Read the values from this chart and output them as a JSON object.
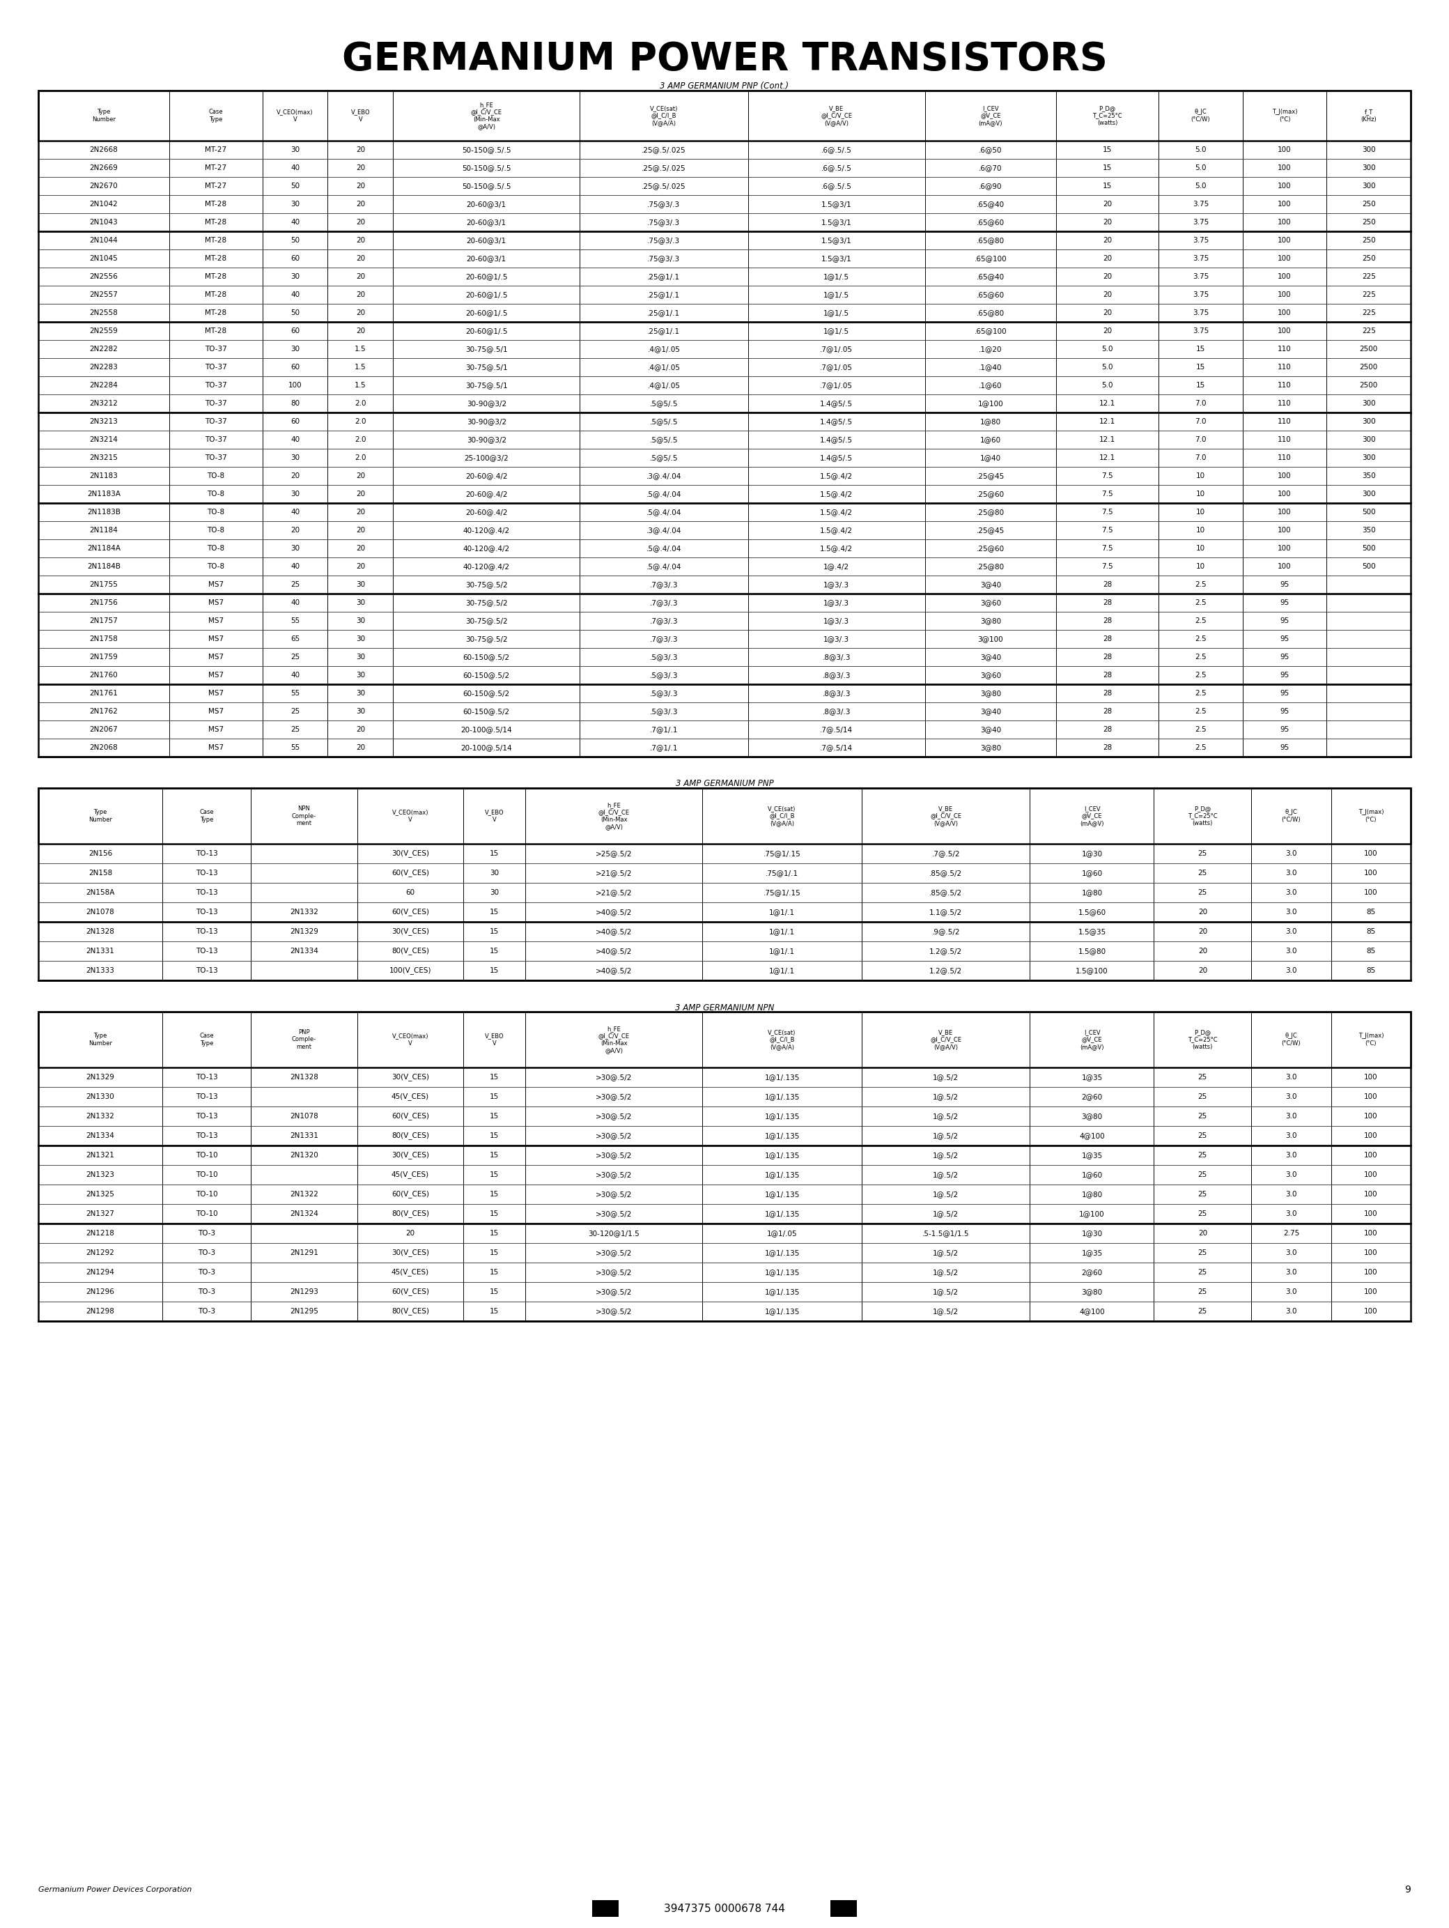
{
  "title": "GERMANIUM POWER TRANSISTORS",
  "background_color": "#ffffff",
  "page_number": "9",
  "barcode_text": "3947375 0000678 744",
  "footer_text": "Germanium Power Devices Corporation",
  "table1_section_title": "3 AMP GERMANIUM PNP (Cont.)",
  "table1_col_weights": [
    1.4,
    1.0,
    0.7,
    0.7,
    2.0,
    1.8,
    1.9,
    1.4,
    1.1,
    0.9,
    0.9,
    0.9
  ],
  "table1_headers_line1": [
    "Type",
    "Case",
    "V_CEO(max)",
    "V_EBO",
    "h_FE",
    "V_CE(sat)",
    "V_BE",
    "I_CEV",
    "P_D@",
    "",
    "T_J(max)",
    "f_T"
  ],
  "table1_headers_line2": [
    "Number",
    "Type",
    "V",
    "V",
    "@I_C/V_CE",
    "@I_C/I_B",
    "@I_C/V_CE",
    "@V_CE",
    "T_C=25°C",
    "θ_JC",
    "(°C)",
    "(KHz)"
  ],
  "table1_headers_line3": [
    "",
    "",
    "",
    "",
    "(Min-Max",
    "(V@A/A)",
    "(V@A/V)",
    "(mA@V)",
    "(watts)",
    "(°C/W)",
    "",
    ""
  ],
  "table1_headers_line4": [
    "",
    "",
    "",
    "",
    "@A/V)",
    "",
    "",
    "",
    "",
    "",
    "",
    ""
  ],
  "table1_header_row1": [
    "Type",
    "Case",
    "V_CEO(max)",
    "V_EBO",
    "h_FE\n@I_C/V_CE\n(Min-Max\n@A/V)",
    "V_CE(sat)\n@I_C/I_B\n(V@A/A)",
    "V_BE\n@I_C/V_CE\n(V@A/V)",
    "I_CEV\n@V_CE\n(mA@V)",
    "P_D@\nT_C=25°C\n(watts)",
    "θ_JC\n(°C/W)",
    "T_J(max)\n(°C)",
    "f_T\n(KHz)"
  ],
  "table1_groups": [
    {
      "rows": [
        [
          "2N2668",
          "MT-27",
          "30",
          "20",
          "50-150@.5/.5",
          ".25@.5/.025",
          ".6@.5/.5",
          ".6@50",
          "15",
          "5.0",
          "100",
          "300"
        ],
        [
          "2N2669",
          "MT-27",
          "40",
          "20",
          "50-150@.5/.5",
          ".25@.5/.025",
          ".6@.5/.5",
          ".6@70",
          "15",
          "5.0",
          "100",
          "300"
        ],
        [
          "2N2670",
          "MT-27",
          "50",
          "20",
          "50-150@.5/.5",
          ".25@.5/.025",
          ".6@.5/.5",
          ".6@90",
          "15",
          "5.0",
          "100",
          "300"
        ],
        [
          "2N1042",
          "MT-28",
          "30",
          "20",
          "20-60@3/1",
          ".75@3/.3",
          "1.5@3/1",
          ".65@40",
          "20",
          "3.75",
          "100",
          "250"
        ],
        [
          "2N1043",
          "MT-28",
          "40",
          "20",
          "20-60@3/1",
          ".75@3/.3",
          "1.5@3/1",
          ".65@60",
          "20",
          "3.75",
          "100",
          "250"
        ]
      ]
    },
    {
      "rows": [
        [
          "2N1044",
          "MT-28",
          "50",
          "20",
          "20-60@3/1",
          ".75@3/.3",
          "1.5@3/1",
          ".65@80",
          "20",
          "3.75",
          "100",
          "250"
        ],
        [
          "2N1045",
          "MT-28",
          "60",
          "20",
          "20-60@3/1",
          ".75@3/.3",
          "1.5@3/1",
          ".65@100",
          "20",
          "3.75",
          "100",
          "250"
        ],
        [
          "2N2556",
          "MT-28",
          "30",
          "20",
          "20-60@1/.5",
          ".25@1/.1",
          "1@1/.5",
          ".65@40",
          "20",
          "3.75",
          "100",
          "225"
        ],
        [
          "2N2557",
          "MT-28",
          "40",
          "20",
          "20-60@1/.5",
          ".25@1/.1",
          "1@1/.5",
          ".65@60",
          "20",
          "3.75",
          "100",
          "225"
        ],
        [
          "2N2558",
          "MT-28",
          "50",
          "20",
          "20-60@1/.5",
          ".25@1/.1",
          "1@1/.5",
          ".65@80",
          "20",
          "3.75",
          "100",
          "225"
        ]
      ]
    },
    {
      "rows": [
        [
          "2N2559",
          "MT-28",
          "60",
          "20",
          "20-60@1/.5",
          ".25@1/.1",
          "1@1/.5",
          ".65@100",
          "20",
          "3.75",
          "100",
          "225"
        ],
        [
          "2N2282",
          "TO-37",
          "30",
          "1.5",
          "30-75@.5/1",
          ".4@1/.05",
          ".7@1/.05",
          ".1@20",
          "5.0",
          "15",
          "110",
          "2500"
        ],
        [
          "2N2283",
          "TO-37",
          "60",
          "1.5",
          "30-75@.5/1",
          ".4@1/.05",
          ".7@1/.05",
          ".1@40",
          "5.0",
          "15",
          "110",
          "2500"
        ],
        [
          "2N2284",
          "TO-37",
          "100",
          "1.5",
          "30-75@.5/1",
          ".4@1/.05",
          ".7@1/.05",
          ".1@60",
          "5.0",
          "15",
          "110",
          "2500"
        ],
        [
          "2N3212",
          "TO-37",
          "80",
          "2.0",
          "30-90@3/2",
          ".5@5/.5",
          "1.4@5/.5",
          "1@100",
          "12.1",
          "7.0",
          "110",
          "300"
        ]
      ]
    },
    {
      "rows": [
        [
          "2N3213",
          "TO-37",
          "60",
          "2.0",
          "30-90@3/2",
          ".5@5/.5",
          "1.4@5/.5",
          "1@80",
          "12.1",
          "7.0",
          "110",
          "300"
        ],
        [
          "2N3214",
          "TO-37",
          "40",
          "2.0",
          "30-90@3/2",
          ".5@5/.5",
          "1.4@5/.5",
          "1@60",
          "12.1",
          "7.0",
          "110",
          "300"
        ],
        [
          "2N3215",
          "TO-37",
          "30",
          "2.0",
          "25-100@3/2",
          ".5@5/.5",
          "1.4@5/.5",
          "1@40",
          "12.1",
          "7.0",
          "110",
          "300"
        ],
        [
          "2N1183",
          "TO-8",
          "20",
          "20",
          "20-60@.4/2",
          ".3@.4/.04",
          "1.5@.4/2",
          ".25@45",
          "7.5",
          "10",
          "100",
          "350"
        ],
        [
          "2N1183A",
          "TO-8",
          "30",
          "20",
          "20-60@.4/2",
          ".5@.4/.04",
          "1.5@.4/2",
          ".25@60",
          "7.5",
          "10",
          "100",
          "300"
        ]
      ]
    },
    {
      "rows": [
        [
          "2N1183B",
          "TO-8",
          "40",
          "20",
          "20-60@.4/2",
          ".5@.4/.04",
          "1.5@.4/2",
          ".25@80",
          "7.5",
          "10",
          "100",
          "500"
        ],
        [
          "2N1184",
          "TO-8",
          "20",
          "20",
          "40-120@.4/2",
          ".3@.4/.04",
          "1.5@.4/2",
          ".25@45",
          "7.5",
          "10",
          "100",
          "350"
        ],
        [
          "2N1184A",
          "TO-8",
          "30",
          "20",
          "40-120@.4/2",
          ".5@.4/.04",
          "1.5@.4/2",
          ".25@60",
          "7.5",
          "10",
          "100",
          "500"
        ],
        [
          "2N1184B",
          "TO-8",
          "40",
          "20",
          "40-120@.4/2",
          ".5@.4/.04",
          "1@.4/2",
          ".25@80",
          "7.5",
          "10",
          "100",
          "500"
        ],
        [
          "2N1755",
          "MS7",
          "25",
          "30",
          "30-75@.5/2",
          ".7@3/.3",
          "1@3/.3",
          "3@40",
          "28",
          "2.5",
          "95",
          ""
        ]
      ]
    },
    {
      "rows": [
        [
          "2N1756",
          "MS7",
          "40",
          "30",
          "30-75@.5/2",
          ".7@3/.3",
          "1@3/.3",
          "3@60",
          "28",
          "2.5",
          "95",
          ""
        ],
        [
          "2N1757",
          "MS7",
          "55",
          "30",
          "30-75@.5/2",
          ".7@3/.3",
          "1@3/.3",
          "3@80",
          "28",
          "2.5",
          "95",
          ""
        ],
        [
          "2N1758",
          "MS7",
          "65",
          "30",
          "30-75@.5/2",
          ".7@3/.3",
          "1@3/.3",
          "3@100",
          "28",
          "2.5",
          "95",
          ""
        ],
        [
          "2N1759",
          "MS7",
          "25",
          "30",
          "60-150@.5/2",
          ".5@3/.3",
          ".8@3/.3",
          "3@40",
          "28",
          "2.5",
          "95",
          ""
        ],
        [
          "2N1760",
          "MS7",
          "40",
          "30",
          "60-150@.5/2",
          ".5@3/.3",
          ".8@3/.3",
          "3@60",
          "28",
          "2.5",
          "95",
          ""
        ]
      ]
    },
    {
      "rows": [
        [
          "2N1761",
          "MS7",
          "55",
          "30",
          "60-150@.5/2",
          ".5@3/.3",
          ".8@3/.3",
          "3@80",
          "28",
          "2.5",
          "95",
          ""
        ],
        [
          "2N1762",
          "MS7",
          "25",
          "30",
          "60-150@.5/2",
          ".5@3/.3",
          ".8@3/.3",
          "3@40",
          "28",
          "2.5",
          "95",
          ""
        ],
        [
          "2N2067",
          "MS7",
          "25",
          "20",
          "20-100@.5/14",
          ".7@1/.1",
          ".7@.5/14",
          "3@40",
          "28",
          "2.5",
          "95",
          ""
        ],
        [
          "2N2068",
          "MS7",
          "55",
          "20",
          "20-100@.5/14",
          ".7@1/.1",
          ".7@.5/14",
          "3@80",
          "28",
          "2.5",
          "95",
          ""
        ]
      ]
    }
  ],
  "table2_section_title": "3 AMP GERMANIUM PNP",
  "table2_col_weights": [
    1.4,
    1.0,
    1.2,
    1.2,
    0.7,
    2.0,
    1.8,
    1.9,
    1.4,
    1.1,
    0.9,
    0.9
  ],
  "table2_groups": [
    {
      "rows": [
        [
          "2N156",
          "TO-13",
          "",
          "30(V_CES)",
          "15",
          ">25@.5/2",
          ".75@1/.15",
          ".7@.5/2",
          "1@30",
          "25",
          "3.0",
          "100"
        ],
        [
          "2N158",
          "TO-13",
          "",
          "60(V_CES)",
          "30",
          ">21@.5/2",
          ".75@1/.1",
          ".85@.5/2",
          "1@60",
          "25",
          "3.0",
          "100"
        ],
        [
          "2N158A",
          "TO-13",
          "",
          "60",
          "30",
          ">21@.5/2",
          ".75@1/.15",
          ".85@.5/2",
          "1@80",
          "25",
          "3.0",
          "100"
        ],
        [
          "2N1078",
          "TO-13",
          "2N1332",
          "60(V_CES)",
          "15",
          ">40@.5/2",
          "1@1/.1",
          "1.1@.5/2",
          "1.5@60",
          "20",
          "3.0",
          "85"
        ]
      ]
    },
    {
      "rows": [
        [
          "2N1328",
          "TO-13",
          "2N1329",
          "30(V_CES)",
          "15",
          ">40@.5/2",
          "1@1/.1",
          ".9@.5/2",
          "1.5@35",
          "20",
          "3.0",
          "85"
        ],
        [
          "2N1331",
          "TO-13",
          "2N1334",
          "80(V_CES)",
          "15",
          ">40@.5/2",
          "1@1/.1",
          "1.2@.5/2",
          "1.5@80",
          "20",
          "3.0",
          "85"
        ],
        [
          "2N1333",
          "TO-13",
          "",
          "100(V_CES)",
          "15",
          ">40@.5/2",
          "1@1/.1",
          "1.2@.5/2",
          "1.5@100",
          "20",
          "3.0",
          "85"
        ]
      ]
    }
  ],
  "table3_section_title": "3 AMP GERMANIUM NPN",
  "table3_col_weights": [
    1.4,
    1.0,
    1.2,
    1.2,
    0.7,
    2.0,
    1.8,
    1.9,
    1.4,
    1.1,
    0.9,
    0.9
  ],
  "table3_groups": [
    {
      "rows": [
        [
          "2N1329",
          "TO-13",
          "2N1328",
          "30(V_CES)",
          "15",
          ">30@.5/2",
          "1@1/.135",
          "1@.5/2",
          "1@35",
          "25",
          "3.0",
          "100"
        ],
        [
          "2N1330",
          "TO-13",
          "",
          "45(V_CES)",
          "15",
          ">30@.5/2",
          "1@1/.135",
          "1@.5/2",
          "2@60",
          "25",
          "3.0",
          "100"
        ],
        [
          "2N1332",
          "TO-13",
          "2N1078",
          "60(V_CES)",
          "15",
          ">30@.5/2",
          "1@1/.135",
          "1@.5/2",
          "3@80",
          "25",
          "3.0",
          "100"
        ],
        [
          "2N1334",
          "TO-13",
          "2N1331",
          "80(V_CES)",
          "15",
          ">30@.5/2",
          "1@1/.135",
          "1@.5/2",
          "4@100",
          "25",
          "3.0",
          "100"
        ]
      ]
    },
    {
      "rows": [
        [
          "2N1321",
          "TO-10",
          "2N1320",
          "30(V_CES)",
          "15",
          ">30@.5/2",
          "1@1/.135",
          "1@.5/2",
          "1@35",
          "25",
          "3.0",
          "100"
        ],
        [
          "2N1323",
          "TO-10",
          "",
          "45(V_CES)",
          "15",
          ">30@.5/2",
          "1@1/.135",
          "1@.5/2",
          "1@60",
          "25",
          "3.0",
          "100"
        ],
        [
          "2N1325",
          "TO-10",
          "2N1322",
          "60(V_CES)",
          "15",
          ">30@.5/2",
          "1@1/.135",
          "1@.5/2",
          "1@80",
          "25",
          "3.0",
          "100"
        ],
        [
          "2N1327",
          "TO-10",
          "2N1324",
          "80(V_CES)",
          "15",
          ">30@.5/2",
          "1@1/.135",
          "1@.5/2",
          "1@100",
          "25",
          "3.0",
          "100"
        ]
      ]
    },
    {
      "rows": [
        [
          "2N1218",
          "TO-3",
          "",
          "20",
          "15",
          "30-120@1/1.5",
          "1@1/.05",
          ".5-1.5@1/1.5",
          "1@30",
          "20",
          "2.75",
          "100"
        ],
        [
          "2N1292",
          "TO-3",
          "2N1291",
          "30(V_CES)",
          "15",
          ">30@.5/2",
          "1@1/.135",
          "1@.5/2",
          "1@35",
          "25",
          "3.0",
          "100"
        ],
        [
          "2N1294",
          "TO-3",
          "",
          "45(V_CES)",
          "15",
          ">30@.5/2",
          "1@1/.135",
          "1@.5/2",
          "2@60",
          "25",
          "3.0",
          "100"
        ],
        [
          "2N1296",
          "TO-3",
          "2N1293",
          "60(V_CES)",
          "15",
          ">30@.5/2",
          "1@1/.135",
          "1@.5/2",
          "3@80",
          "25",
          "3.0",
          "100"
        ],
        [
          "2N1298",
          "TO-3",
          "2N1295",
          "80(V_CES)",
          "15",
          ">30@.5/2",
          "1@1/.135",
          "1@.5/2",
          "4@100",
          "25",
          "3.0",
          "100"
        ]
      ]
    }
  ]
}
